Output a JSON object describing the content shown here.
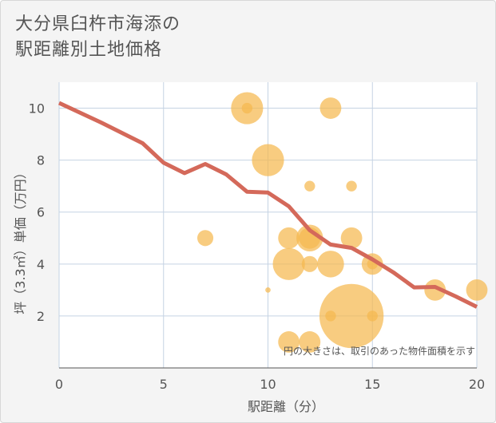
{
  "title_line1": "大分県臼杵市海添の",
  "title_line2": "駅距離別土地価格",
  "chart_data": {
    "type": "scatter+line",
    "xlabel": "駅距離（分）",
    "ylabel": "坪（3.3㎡）単価（万円）",
    "xlim": [
      0,
      20
    ],
    "ylim": [
      0,
      11
    ],
    "x_ticks": [
      "0",
      "5",
      "10",
      "15",
      "20"
    ],
    "y_ticks": [
      "2",
      "4",
      "6",
      "8",
      "10"
    ],
    "note": "円の大きさは、取引のあった物件面積を示す",
    "colors": {
      "bubble": "#f5b84f",
      "line": "#d4695a",
      "grid": "#c5d3e3",
      "background": "#ffffff"
    },
    "bubbles": [
      {
        "x": 9,
        "y": 10,
        "size": 3
      },
      {
        "x": 9,
        "y": 10,
        "size": 1
      },
      {
        "x": 13,
        "y": 10,
        "size": 2
      },
      {
        "x": 10,
        "y": 8,
        "size": 3
      },
      {
        "x": 12,
        "y": 7,
        "size": 1
      },
      {
        "x": 14,
        "y": 7,
        "size": 1
      },
      {
        "x": 7,
        "y": 5,
        "size": 1.5
      },
      {
        "x": 11,
        "y": 5,
        "size": 2
      },
      {
        "x": 12,
        "y": 5,
        "size": 2.5
      },
      {
        "x": 12,
        "y": 5,
        "size": 2
      },
      {
        "x": 14,
        "y": 5,
        "size": 2
      },
      {
        "x": 11,
        "y": 4,
        "size": 3
      },
      {
        "x": 12,
        "y": 4,
        "size": 1.5
      },
      {
        "x": 13,
        "y": 4,
        "size": 2.5
      },
      {
        "x": 15,
        "y": 4,
        "size": 2
      },
      {
        "x": 15,
        "y": 4,
        "size": 1
      },
      {
        "x": 10,
        "y": 3,
        "size": 0.5
      },
      {
        "x": 18,
        "y": 3,
        "size": 2
      },
      {
        "x": 20,
        "y": 3,
        "size": 2
      },
      {
        "x": 14,
        "y": 2,
        "size": 6
      },
      {
        "x": 13,
        "y": 2,
        "size": 1
      },
      {
        "x": 15,
        "y": 2,
        "size": 1
      },
      {
        "x": 11,
        "y": 1,
        "size": 2
      },
      {
        "x": 12,
        "y": 1,
        "size": 2
      }
    ],
    "line": {
      "x": [
        0,
        2,
        4,
        5,
        6,
        7,
        8,
        9,
        10,
        11,
        12,
        13,
        14,
        15,
        16,
        17,
        18,
        19,
        20
      ],
      "y": [
        10.2,
        9.45,
        8.65,
        7.9,
        7.5,
        7.85,
        7.45,
        6.78,
        6.75,
        6.22,
        5.3,
        4.75,
        4.62,
        4.18,
        3.68,
        3.1,
        3.12,
        2.75,
        2.35
      ]
    }
  }
}
